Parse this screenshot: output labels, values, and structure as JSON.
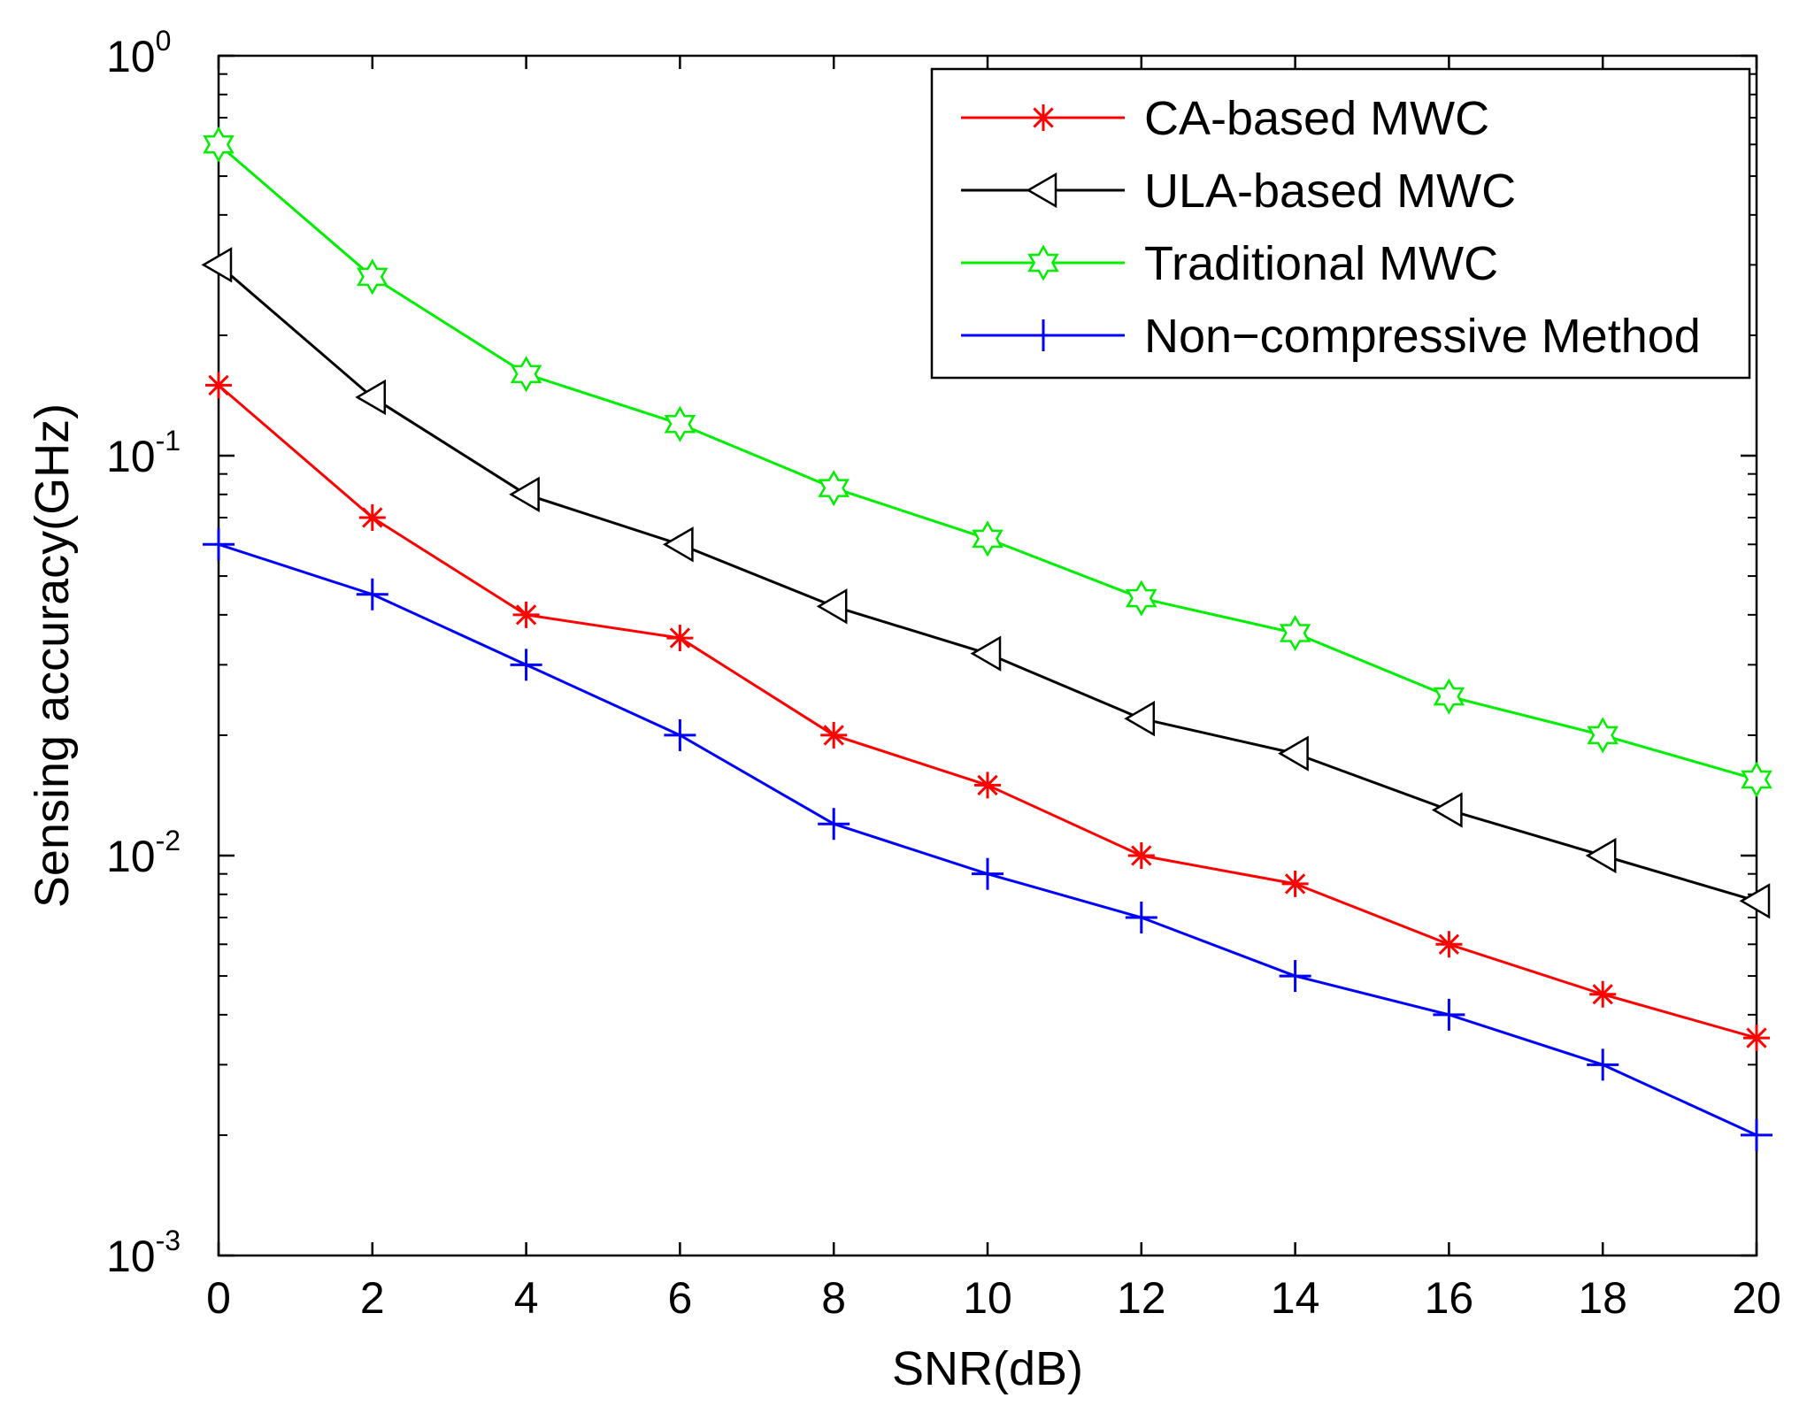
{
  "chart_data": {
    "type": "line",
    "title": "",
    "xlabel": "SNR(dB)",
    "ylabel": "Sensing accuracy(GHz)",
    "xlim": [
      0,
      20
    ],
    "ylim": [
      0.001,
      1
    ],
    "yscale": "log",
    "grid": false,
    "legend_position": "top-right",
    "x_ticks": [
      {
        "value": 0,
        "label": "0"
      },
      {
        "value": 2,
        "label": "2"
      },
      {
        "value": 4,
        "label": "4"
      },
      {
        "value": 6,
        "label": "6"
      },
      {
        "value": 8,
        "label": "8"
      },
      {
        "value": 10,
        "label": "10"
      },
      {
        "value": 12,
        "label": "12"
      },
      {
        "value": 14,
        "label": "14"
      },
      {
        "value": 16,
        "label": "16"
      },
      {
        "value": 18,
        "label": "18"
      },
      {
        "value": 20,
        "label": "20"
      }
    ],
    "y_ticks": [
      {
        "value": 1,
        "base": "10",
        "exponent": "0"
      },
      {
        "value": 0.1,
        "base": "10",
        "exponent": "-1"
      },
      {
        "value": 0.01,
        "base": "10",
        "exponent": "-2"
      },
      {
        "value": 0.001,
        "base": "10",
        "exponent": "-3"
      }
    ],
    "x": [
      0,
      2,
      4,
      6,
      8,
      10,
      12,
      14,
      16,
      18,
      20
    ],
    "series": [
      {
        "name": "CA-based MWC",
        "color": "#ff0000",
        "marker": "asterisk",
        "values": [
          0.15,
          0.07,
          0.04,
          0.035,
          0.02,
          0.015,
          0.01,
          0.0085,
          0.006,
          0.0045,
          0.0035
        ]
      },
      {
        "name": "ULA-based MWC",
        "color": "#000000",
        "marker": "triangle-left",
        "values": [
          0.3,
          0.14,
          0.08,
          0.06,
          0.042,
          0.032,
          0.022,
          0.018,
          0.013,
          0.01,
          0.0077
        ]
      },
      {
        "name": "Traditional MWC",
        "color": "#00ee00",
        "marker": "hexagram",
        "values": [
          0.6,
          0.28,
          0.16,
          0.12,
          0.083,
          0.062,
          0.044,
          0.036,
          0.025,
          0.02,
          0.0155
        ]
      },
      {
        "name": "Non−compressive Method",
        "color": "#0000ff",
        "marker": "plus",
        "values": [
          0.06,
          0.045,
          0.03,
          0.02,
          0.012,
          0.009,
          0.007,
          0.005,
          0.004,
          0.003,
          0.002
        ]
      }
    ]
  }
}
